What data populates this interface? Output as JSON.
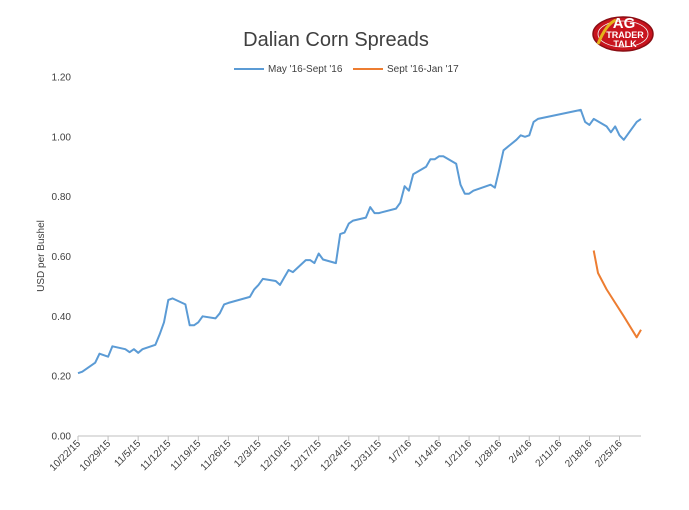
{
  "logo": {
    "line1": "AG",
    "line2": "TRADER",
    "line3": "TALK"
  },
  "chart_data": {
    "type": "line",
    "title": "Dalian Corn Spreads",
    "xlabel": "",
    "ylabel": "USD per Bushel",
    "ylim": [
      0.0,
      1.2
    ],
    "yticks": [
      "0.00",
      "0.20",
      "0.40",
      "0.60",
      "0.80",
      "1.00",
      "1.20"
    ],
    "xticks": [
      "10/22/15",
      "10/29/15",
      "11/5/15",
      "11/12/15",
      "11/19/15",
      "11/26/15",
      "12/3/15",
      "12/10/15",
      "12/17/15",
      "12/24/15",
      "12/31/15",
      "1/7/16",
      "1/14/16",
      "1/21/16",
      "1/28/16",
      "2/4/16",
      "2/11/16",
      "2/18/16",
      "2/25/16"
    ],
    "xlim": [
      "2015-10-22",
      "2016-03-01"
    ],
    "grid": false,
    "legend": "top-center",
    "series": [
      {
        "name": "May '16-Sept '16",
        "color": "#5B9BD5",
        "points": [
          [
            "2015-10-22",
            0.21
          ],
          [
            "2015-10-23",
            0.215
          ],
          [
            "2015-10-24",
            0.225
          ],
          [
            "2015-10-26",
            0.245
          ],
          [
            "2015-10-27",
            0.275
          ],
          [
            "2015-10-28",
            0.27
          ],
          [
            "2015-10-29",
            0.265
          ],
          [
            "2015-10-30",
            0.3
          ],
          [
            "2015-11-02",
            0.29
          ],
          [
            "2015-11-03",
            0.28
          ],
          [
            "2015-11-04",
            0.29
          ],
          [
            "2015-11-05",
            0.278
          ],
          [
            "2015-11-06",
            0.29
          ],
          [
            "2015-11-09",
            0.305
          ],
          [
            "2015-11-10",
            0.34
          ],
          [
            "2015-11-11",
            0.38
          ],
          [
            "2015-11-12",
            0.455
          ],
          [
            "2015-11-13",
            0.46
          ],
          [
            "2015-11-16",
            0.44
          ],
          [
            "2015-11-17",
            0.37
          ],
          [
            "2015-11-18",
            0.37
          ],
          [
            "2015-11-19",
            0.38
          ],
          [
            "2015-11-20",
            0.4
          ],
          [
            "2015-11-23",
            0.393
          ],
          [
            "2015-11-24",
            0.41
          ],
          [
            "2015-11-25",
            0.44
          ],
          [
            "2015-11-26",
            0.445
          ],
          [
            "2015-12-01",
            0.465
          ],
          [
            "2015-12-02",
            0.49
          ],
          [
            "2015-12-03",
            0.505
          ],
          [
            "2015-12-04",
            0.525
          ],
          [
            "2015-12-07",
            0.518
          ],
          [
            "2015-12-08",
            0.505
          ],
          [
            "2015-12-09",
            0.53
          ],
          [
            "2015-12-10",
            0.555
          ],
          [
            "2015-12-11",
            0.548
          ],
          [
            "2015-12-14",
            0.588
          ],
          [
            "2015-12-15",
            0.588
          ],
          [
            "2015-12-16",
            0.578
          ],
          [
            "2015-12-17",
            0.61
          ],
          [
            "2015-12-18",
            0.59
          ],
          [
            "2015-12-21",
            0.578
          ],
          [
            "2015-12-22",
            0.675
          ],
          [
            "2015-12-23",
            0.68
          ],
          [
            "2015-12-24",
            0.71
          ],
          [
            "2015-12-25",
            0.72
          ],
          [
            "2015-12-28",
            0.73
          ],
          [
            "2015-12-29",
            0.765
          ],
          [
            "2015-12-30",
            0.745
          ],
          [
            "2015-12-31",
            0.745
          ],
          [
            "2016-01-04",
            0.76
          ],
          [
            "2016-01-05",
            0.78
          ],
          [
            "2016-01-06",
            0.835
          ],
          [
            "2016-01-07",
            0.82
          ],
          [
            "2016-01-08",
            0.875
          ],
          [
            "2016-01-11",
            0.9
          ],
          [
            "2016-01-12",
            0.925
          ],
          [
            "2016-01-13",
            0.925
          ],
          [
            "2016-01-14",
            0.935
          ],
          [
            "2016-01-15",
            0.935
          ],
          [
            "2016-01-18",
            0.91
          ],
          [
            "2016-01-19",
            0.84
          ],
          [
            "2016-01-20",
            0.81
          ],
          [
            "2016-01-21",
            0.81
          ],
          [
            "2016-01-22",
            0.82
          ],
          [
            "2016-01-25",
            0.835
          ],
          [
            "2016-01-26",
            0.84
          ],
          [
            "2016-01-27",
            0.83
          ],
          [
            "2016-01-28",
            0.89
          ],
          [
            "2016-01-29",
            0.955
          ],
          [
            "2016-02-01",
            0.99
          ],
          [
            "2016-02-02",
            1.005
          ],
          [
            "2016-02-03",
            1.0
          ],
          [
            "2016-02-04",
            1.005
          ],
          [
            "2016-02-05",
            1.05
          ],
          [
            "2016-02-06",
            1.06
          ],
          [
            "2016-02-16",
            1.09
          ],
          [
            "2016-02-17",
            1.05
          ],
          [
            "2016-02-18",
            1.04
          ],
          [
            "2016-02-19",
            1.06
          ],
          [
            "2016-02-22",
            1.035
          ],
          [
            "2016-02-23",
            1.015
          ],
          [
            "2016-02-24",
            1.035
          ],
          [
            "2016-02-25",
            1.005
          ],
          [
            "2016-02-26",
            0.99
          ],
          [
            "2016-02-29",
            1.05
          ],
          [
            "2016-03-01",
            1.06
          ]
        ]
      },
      {
        "name": "Sept '16-Jan '17",
        "color": "#ED7D31",
        "points": [
          [
            "2016-02-19",
            0.62
          ],
          [
            "2016-02-20",
            0.545
          ],
          [
            "2016-02-22",
            0.49
          ],
          [
            "2016-02-24",
            0.445
          ],
          [
            "2016-02-26",
            0.4
          ],
          [
            "2016-02-29",
            0.33
          ],
          [
            "2016-03-01",
            0.355
          ]
        ]
      }
    ]
  }
}
